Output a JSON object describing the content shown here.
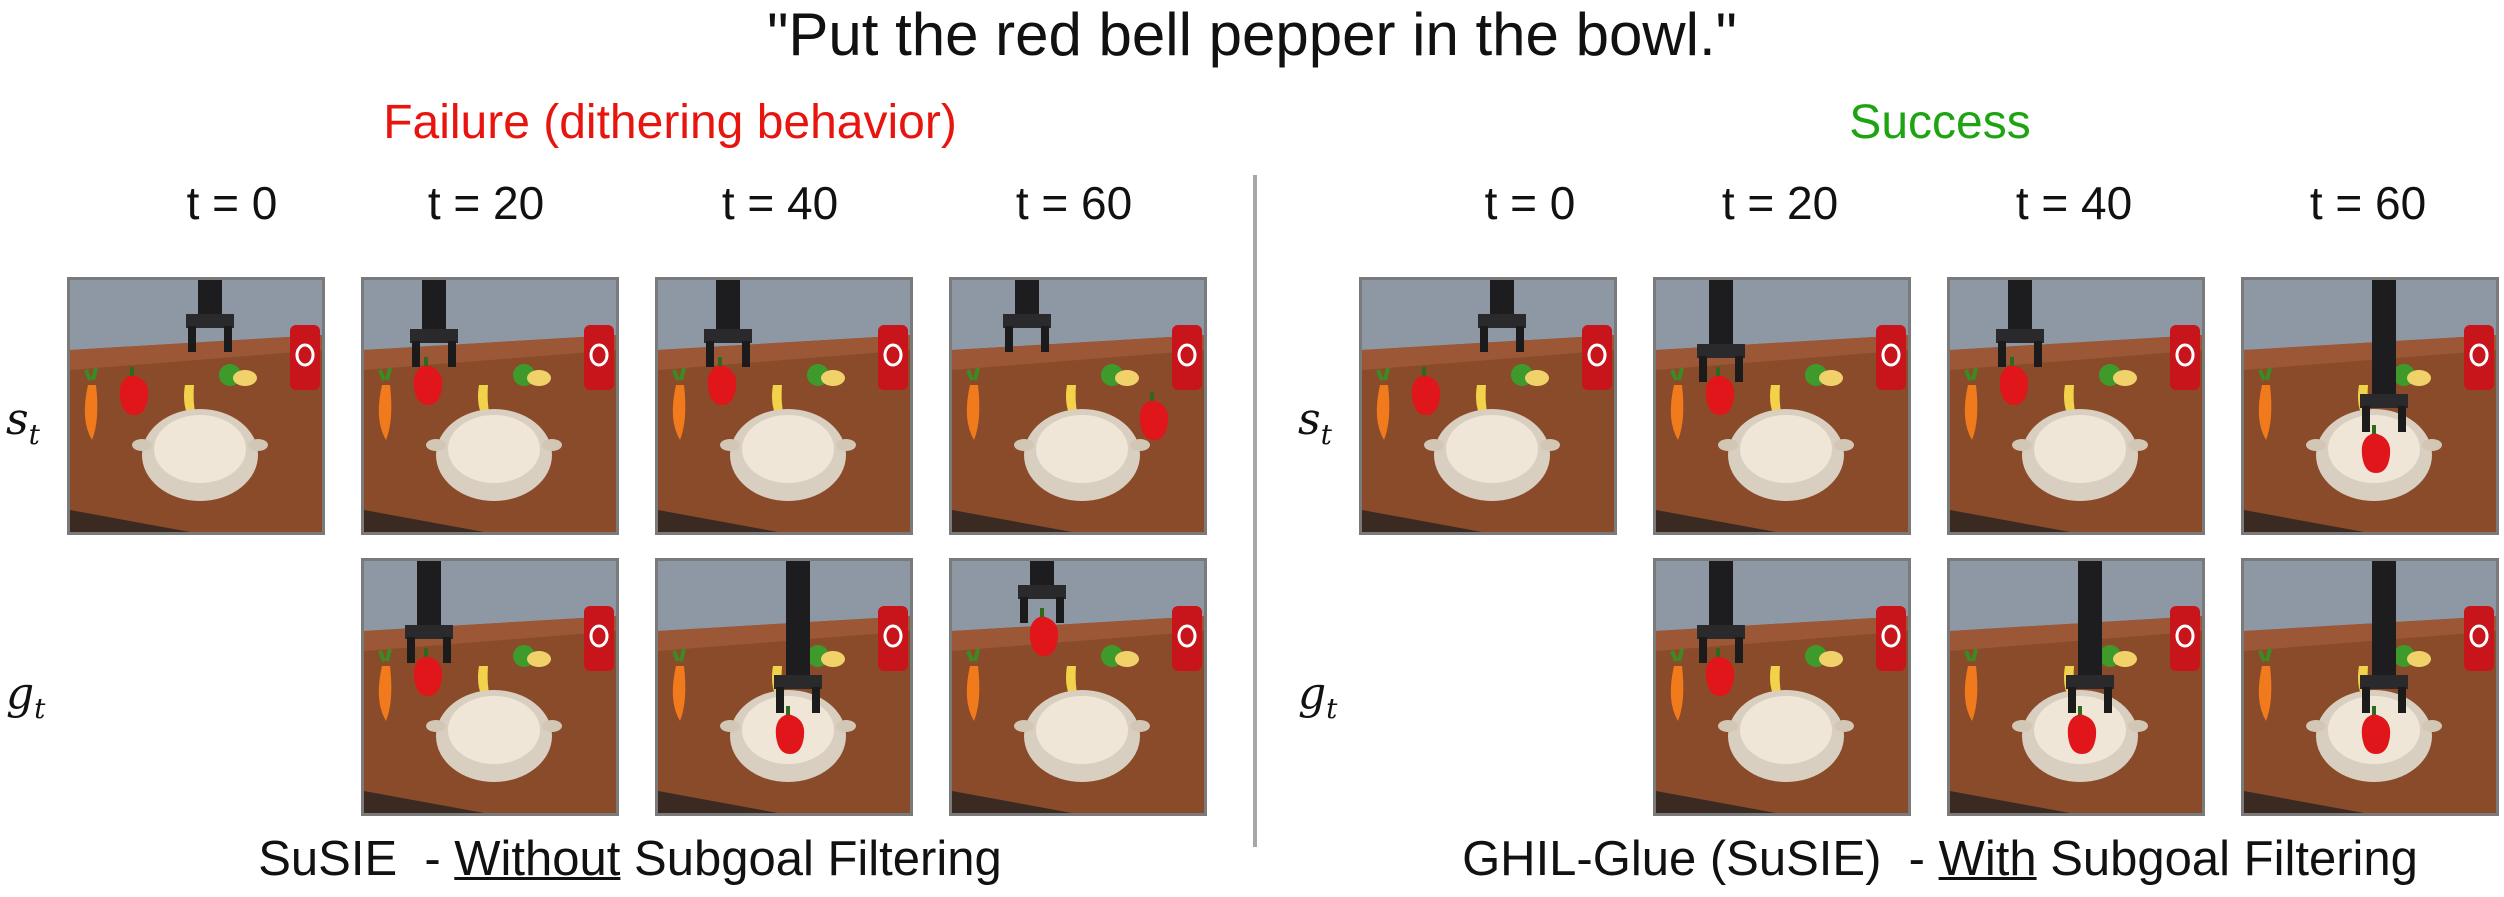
{
  "instruction": "\"Put the red bell pepper in the bowl.\"",
  "left_panel": {
    "title": "Failure (dithering behavior)",
    "title_color": "#e8150f",
    "time_labels": [
      "t = 0",
      "t = 20",
      "t = 40",
      "t = 60"
    ],
    "caption_prefix": "SuSIE  - ",
    "caption_emph": "Without",
    "caption_suffix": " Subgoal Filtering"
  },
  "right_panel": {
    "title": "Success",
    "title_color": "#1ea312",
    "time_labels": [
      "t = 0",
      "t = 20",
      "t = 40",
      "t = 60"
    ],
    "caption_prefix": "GHIL-Glue (SuSIE)  - ",
    "caption_emph": "With",
    "caption_suffix": " Subgoal Filtering"
  },
  "row_labels": {
    "state_symbol": "s",
    "state_sub": "t",
    "goal_symbol": "g",
    "goal_sub": "t"
  },
  "image_kinds": {
    "left_state": [
      "tabletop-scene",
      "tabletop-scene",
      "tabletop-scene",
      "tabletop-scene"
    ],
    "left_goal": [
      "",
      "tabletop-scene",
      "tabletop-scene",
      "tabletop-scene"
    ],
    "right_state": [
      "tabletop-scene",
      "tabletop-scene",
      "tabletop-scene",
      "tabletop-scene"
    ],
    "right_goal": [
      "",
      "tabletop-scene",
      "tabletop-scene",
      "tabletop-scene"
    ]
  }
}
